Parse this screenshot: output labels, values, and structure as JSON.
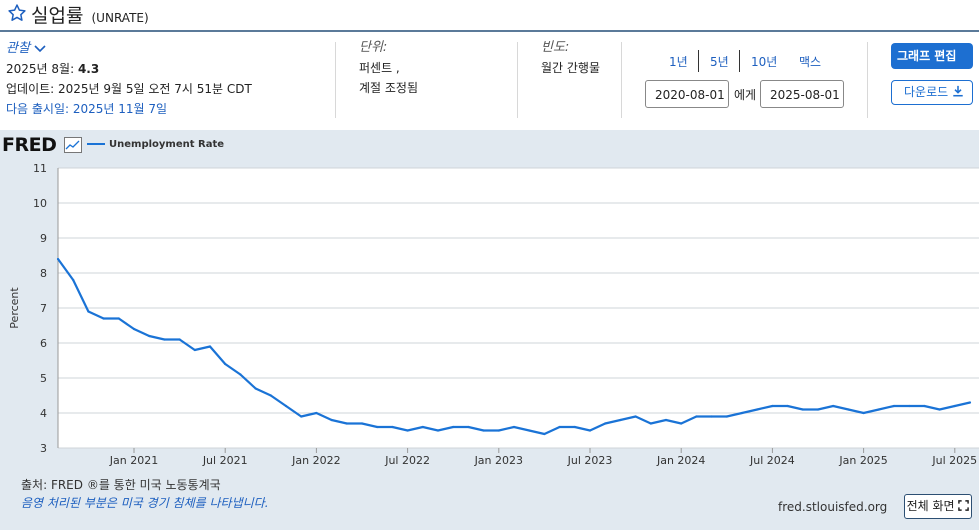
{
  "header": {
    "title": "실업률",
    "series_id": "(UNRATE)"
  },
  "observation": {
    "label": "관찰",
    "date": "2025년 8월:",
    "value": "4.3"
  },
  "updated": "업데이트: 2025년 9월 5일 오전 7시 51분 CDT",
  "next_release": "다음 출시일: 2025년 11월 7일",
  "units": {
    "label": "단위:",
    "line1": "퍼센트 ,",
    "line2": "계절 조정됨"
  },
  "frequency": {
    "label": "빈도:",
    "value": "월간 간행물"
  },
  "ranges": [
    "1년",
    "5년",
    "10년",
    "맥스"
  ],
  "date_from": "2020-08-01",
  "date_sep": "에게",
  "date_to": "2025-08-01",
  "buttons": {
    "edit": "그래프 편집",
    "download": "다운로드",
    "fullscreen": "전체 화면"
  },
  "chart_brand": "FRED",
  "source": "출처: FRED ®를 통한 미국 노동통계국",
  "recession_note": "음영 처리된 부분은 미국 경기 침체를 나타냅니다.",
  "fred_url": "fred.stlouisfed.org",
  "colors": {
    "line": "#1a73d6",
    "accent": "#1d6fd1",
    "plot_bg": "#e1e9f0"
  },
  "chart_data": {
    "type": "line",
    "ylabel": "Percent",
    "ylim": [
      3,
      11
    ],
    "yticks": [
      3,
      4,
      5,
      6,
      7,
      8,
      9,
      10,
      11
    ],
    "xticks": [
      "Jan 2021",
      "Jul 2021",
      "Jan 2022",
      "Jul 2022",
      "Jan 2023",
      "Jul 2023",
      "Jan 2024",
      "Jul 2024",
      "Jan 2025",
      "Jul 2025"
    ],
    "xtick_index": [
      5,
      11,
      17,
      23,
      29,
      35,
      41,
      47,
      53,
      59
    ],
    "grid": true,
    "legend": "top-left",
    "x": [
      "2020-08",
      "2020-09",
      "2020-10",
      "2020-11",
      "2020-12",
      "2021-01",
      "2021-02",
      "2021-03",
      "2021-04",
      "2021-05",
      "2021-06",
      "2021-07",
      "2021-08",
      "2021-09",
      "2021-10",
      "2021-11",
      "2021-12",
      "2022-01",
      "2022-02",
      "2022-03",
      "2022-04",
      "2022-05",
      "2022-06",
      "2022-07",
      "2022-08",
      "2022-09",
      "2022-10",
      "2022-11",
      "2022-12",
      "2023-01",
      "2023-02",
      "2023-03",
      "2023-04",
      "2023-05",
      "2023-06",
      "2023-07",
      "2023-08",
      "2023-09",
      "2023-10",
      "2023-11",
      "2023-12",
      "2024-01",
      "2024-02",
      "2024-03",
      "2024-04",
      "2024-05",
      "2024-06",
      "2024-07",
      "2024-08",
      "2024-09",
      "2024-10",
      "2024-11",
      "2024-12",
      "2025-01",
      "2025-02",
      "2025-03",
      "2025-04",
      "2025-05",
      "2025-06",
      "2025-07",
      "2025-08"
    ],
    "series": [
      {
        "name": "Unemployment Rate",
        "values": [
          8.4,
          7.8,
          6.9,
          6.7,
          6.7,
          6.4,
          6.2,
          6.1,
          6.1,
          5.8,
          5.9,
          5.4,
          5.1,
          4.7,
          4.5,
          4.2,
          3.9,
          4.0,
          3.8,
          3.7,
          3.7,
          3.6,
          3.6,
          3.5,
          3.6,
          3.5,
          3.6,
          3.6,
          3.5,
          3.5,
          3.6,
          3.5,
          3.4,
          3.6,
          3.6,
          3.5,
          3.7,
          3.8,
          3.9,
          3.7,
          3.8,
          3.7,
          3.9,
          3.9,
          3.9,
          4.0,
          4.1,
          4.2,
          4.2,
          4.1,
          4.1,
          4.2,
          4.1,
          4.0,
          4.1,
          4.2,
          4.2,
          4.2,
          4.1,
          4.2,
          4.3
        ]
      }
    ]
  }
}
